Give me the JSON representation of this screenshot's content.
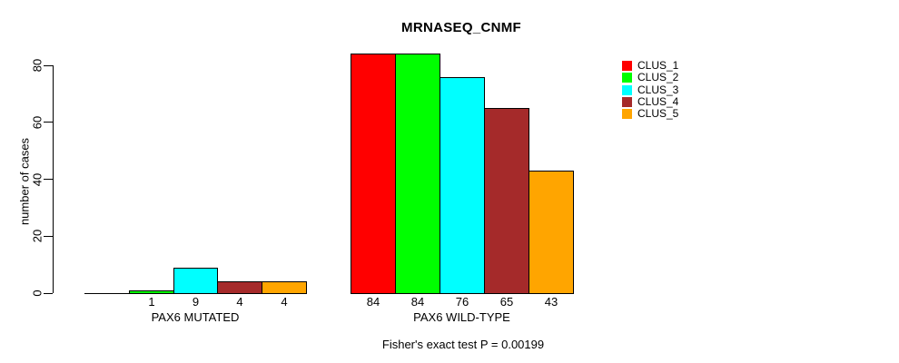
{
  "chart_data": {
    "type": "bar",
    "title": "MRNASEQ_CNMF",
    "ylabel": "number of cases",
    "xlabel": "",
    "footer": "Fisher's exact test P = 0.00199",
    "categories": [
      "PAX6 MUTATED",
      "PAX6 WILD-TYPE"
    ],
    "series": [
      {
        "name": "CLUS_1",
        "color": "#ff0000",
        "values": [
          0,
          84
        ]
      },
      {
        "name": "CLUS_2",
        "color": "#00ff00",
        "values": [
          1,
          84
        ]
      },
      {
        "name": "CLUS_3",
        "color": "#00ffff",
        "values": [
          9,
          76
        ]
      },
      {
        "name": "CLUS_4",
        "color": "#a52a2a",
        "values": [
          4,
          65
        ]
      },
      {
        "name": "CLUS_5",
        "color": "#ffa500",
        "values": [
          4,
          43
        ]
      }
    ],
    "bar_value_labels": [
      [
        "",
        "1",
        "9",
        "4",
        "4"
      ],
      [
        "84",
        "84",
        "76",
        "65",
        "43"
      ]
    ],
    "yticks": [
      0,
      20,
      40,
      60,
      80
    ],
    "ylim": [
      0,
      84
    ],
    "grid": false,
    "legend_position": "right",
    "legend_entries": [
      "CLUS_1",
      "CLUS_2",
      "CLUS_3",
      "CLUS_4",
      "CLUS_5"
    ],
    "axis_color": "#000000",
    "background_color": "#ffffff"
  }
}
